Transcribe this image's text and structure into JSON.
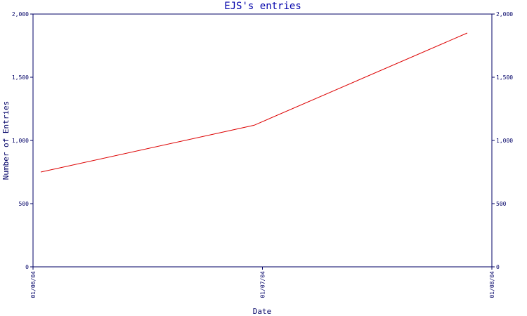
{
  "chart_data": {
    "type": "line",
    "title": "EJS's entries",
    "xlabel": "Date",
    "ylabel": "Number of Entries",
    "x": [
      "01/06/04",
      "01/07/04",
      "01/08/04"
    ],
    "xticks": [
      "01/06/04",
      "01/07/04",
      "01/08/04"
    ],
    "series": [
      {
        "values": [
          750,
          1120,
          1850
        ],
        "color": "#dd0000"
      }
    ],
    "yticks": [
      "0",
      "500",
      "1,000",
      "1,500",
      "2,000"
    ],
    "ylim": [
      0,
      2000
    ],
    "grid": false,
    "right_axis_mirrored": true
  },
  "colors": {
    "axis": "#000066",
    "title": "#0000aa",
    "line": "#dd0000"
  }
}
